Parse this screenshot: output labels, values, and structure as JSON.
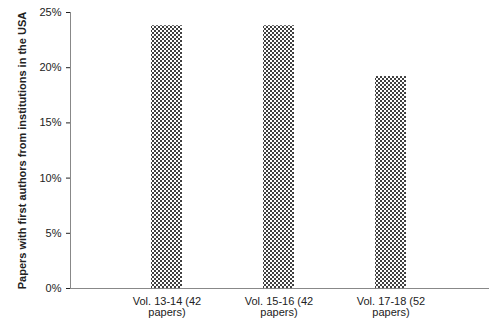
{
  "chart_data": {
    "type": "bar",
    "categories": [
      "Vol. 13-14 (42 papers)",
      "Vol. 15-16 (42 papers)",
      "Vol. 17-18 (52 papers)"
    ],
    "values": [
      23.8,
      23.8,
      19.2
    ],
    "color": "#000000",
    "y_label": "Papers with first authors from institutions in the USA",
    "ylim": [
      0,
      25
    ],
    "yticks": [
      {
        "value": 0,
        "label": "0%"
      },
      {
        "value": 5,
        "label": "5%"
      },
      {
        "value": 10,
        "label": "10%"
      },
      {
        "value": 15,
        "label": "15%"
      },
      {
        "value": 20,
        "label": "20%"
      },
      {
        "value": 25,
        "label": "25%"
      }
    ],
    "grid": false
  }
}
